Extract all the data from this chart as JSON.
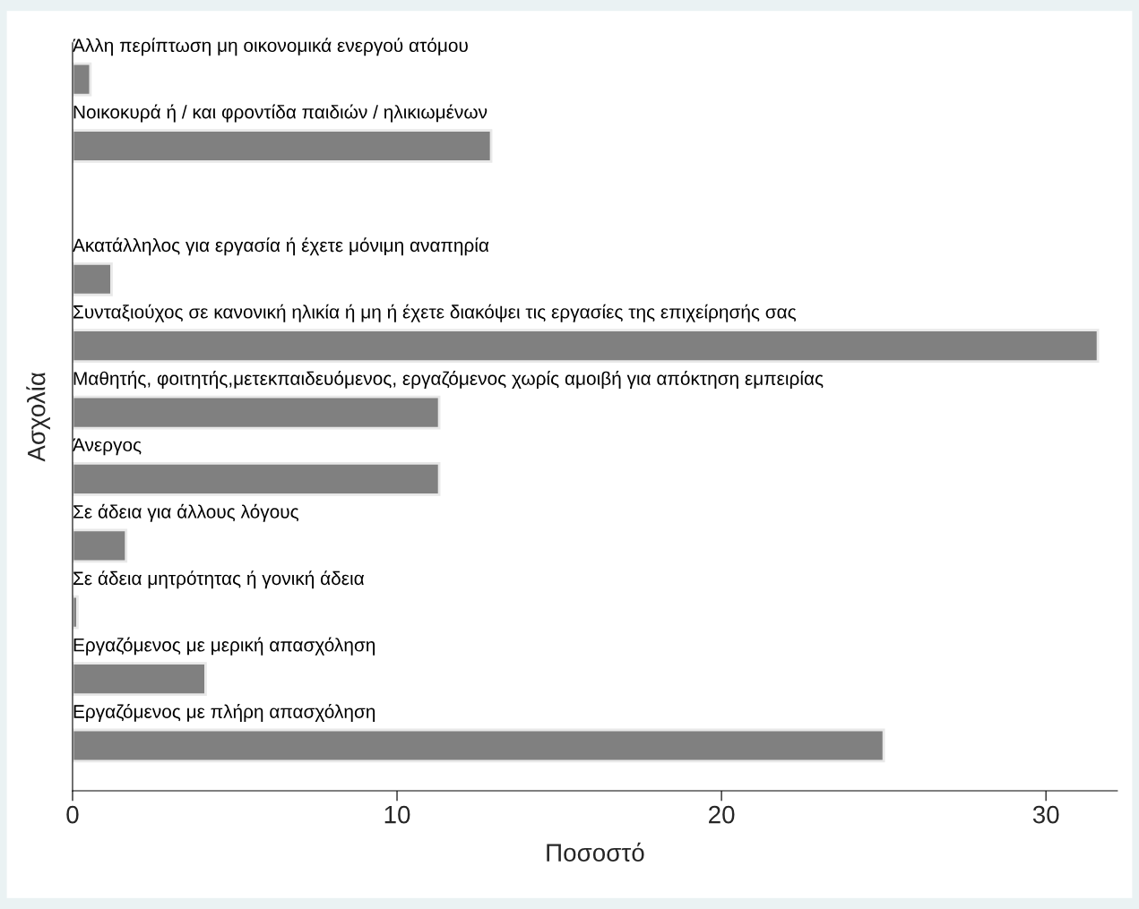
{
  "chart_data": {
    "type": "bar",
    "orientation": "horizontal",
    "xlabel": "Ποσοστό",
    "ylabel": "Ασχολία",
    "categories": [
      "Άλλη περίπτωση μη οικονομικά ενεργού ατόμου",
      "Νοικοκυρά ή / και φροντίδα παιδιών / ηλικιωμένων",
      null,
      "Ακατάλληλος για εργασία ή έχετε μόνιμη αναπηρία",
      "Συνταξιούχος σε κανονική ηλικία ή μη ή έχετε διακόψει τις εργασίες της επιχείρησής σας",
      "Μαθητής, φοιτητής,μετεκπαιδευόμενος, εργαζόμενος χωρίς αμοιβή για απόκτηση εμπειρίας",
      "Άνεργος",
      "Σε άδεια για άλλους λόγους",
      "Σε άδεια μητρότητας ή γονική άδεια",
      "Εργαζόμενος με μερική απασχόληση",
      "Εργαζόμενος με πλήρη απασχόληση"
    ],
    "values": [
      0.55,
      12.9,
      null,
      1.2,
      31.6,
      11.3,
      11.3,
      1.65,
      0.15,
      4.1,
      25.0
    ],
    "color": "#808080",
    "xlim": [
      0,
      32.2
    ],
    "xticks": [
      0,
      10,
      20,
      30
    ],
    "grid": false
  }
}
